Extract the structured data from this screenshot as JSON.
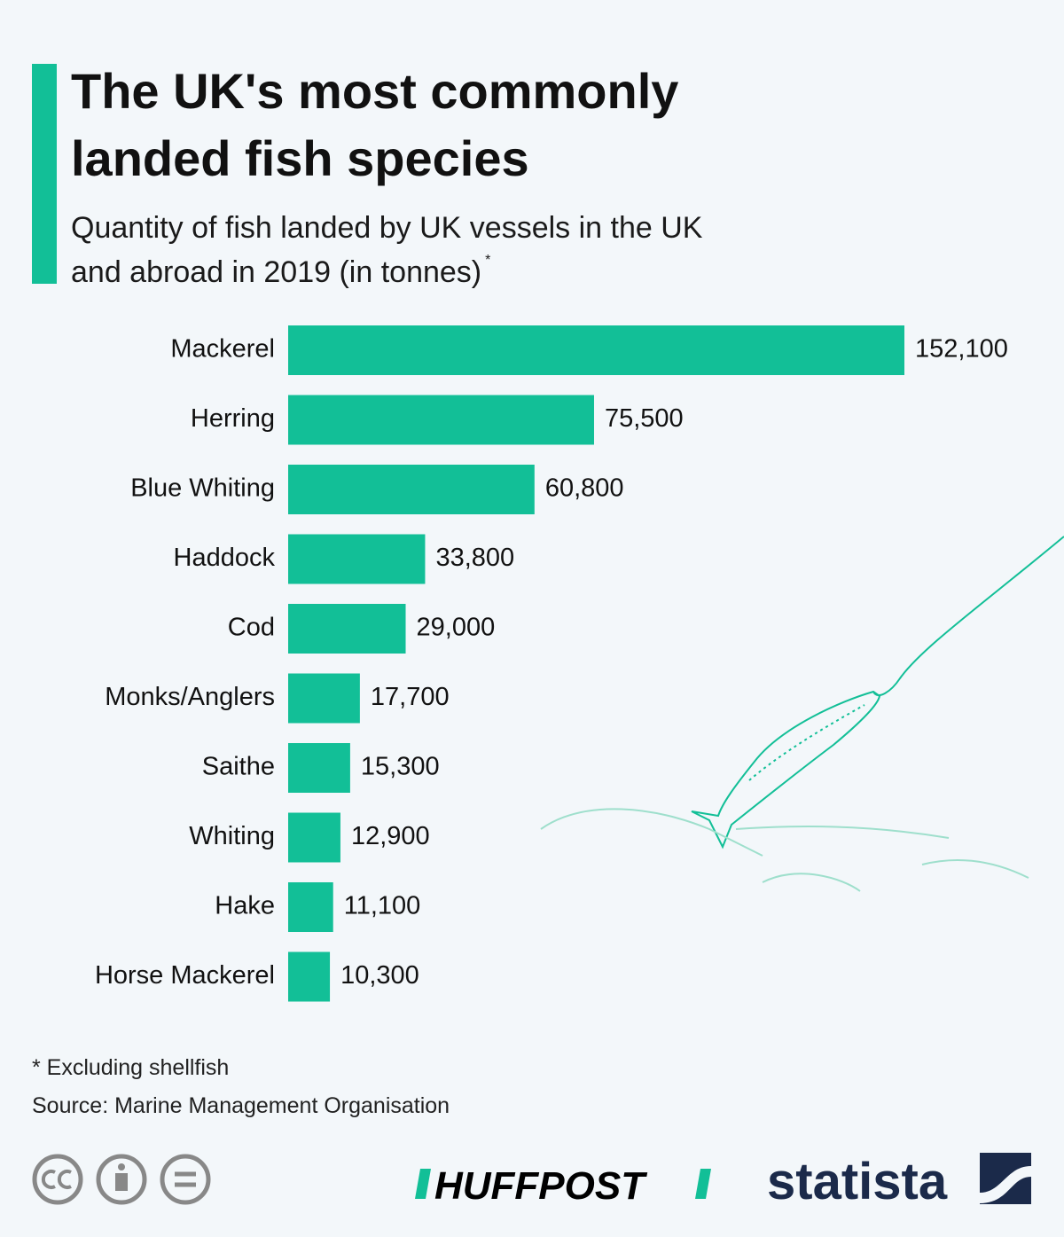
{
  "chart_data": {
    "type": "bar",
    "orientation": "horizontal",
    "title": [
      "The UK's most commonly",
      "landed fish species"
    ],
    "subtitle": [
      "Quantity of fish landed by UK vessels in the UK",
      "and abroad in 2019 (in tonnes)"
    ],
    "subtitle_marker": "*",
    "categories": [
      "Mackerel",
      "Herring",
      "Blue Whiting",
      "Haddock",
      "Cod",
      "Monks/Anglers",
      "Saithe",
      "Whiting",
      "Hake",
      "Horse Mackerel"
    ],
    "values": [
      152100,
      75500,
      60800,
      33800,
      29000,
      17700,
      15300,
      12900,
      11100,
      10300
    ],
    "value_labels": [
      "152,100",
      "75,500",
      "60,800",
      "33,800",
      "29,000",
      "17,700",
      "15,300",
      "12,900",
      "11,100",
      "10,300"
    ],
    "color": "#12bf97",
    "footnote": "* Excluding shellfish",
    "source": "Source: Marine Management Organisation",
    "logos": [
      "HUFFPOST",
      "statista"
    ]
  }
}
